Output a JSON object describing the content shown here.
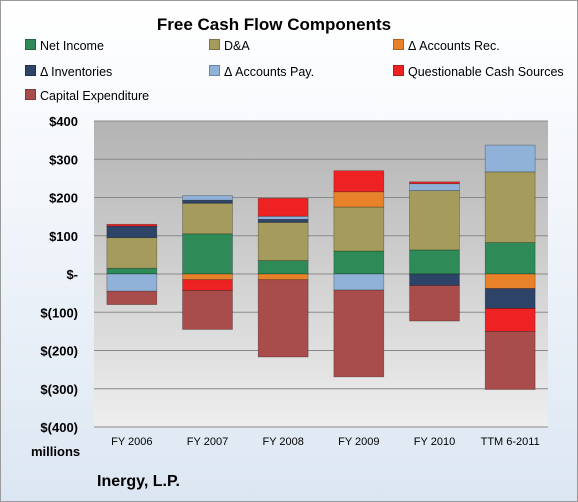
{
  "chart_data": {
    "type": "bar",
    "stacked": true,
    "title": "Free Cash Flow Components",
    "units": "millions",
    "company": "Inergy, L.P.",
    "categories": [
      "FY 2006",
      "FY 2007",
      "FY 2008",
      "FY 2009",
      "FY 2010",
      "TTM 6-2011"
    ],
    "ylim": [
      -400,
      400
    ],
    "yticks": [
      -400,
      -300,
      -200,
      -100,
      0,
      100,
      200,
      300,
      400
    ],
    "ytick_labels": [
      "$(400)",
      "$(300)",
      "$(200)",
      "$(100)",
      "$-",
      "$100",
      "$200",
      "$300",
      "$400"
    ],
    "grid": true,
    "legend_position": "top",
    "series": [
      {
        "name": "Net Income",
        "color": "#2e8b57",
        "values": [
          15,
          105,
          35,
          60,
          63,
          82
        ]
      },
      {
        "name": "D&A",
        "color": "#a49b5c",
        "values": [
          80,
          80,
          100,
          115,
          155,
          185
        ]
      },
      {
        "name": "Δ Accounts Rec.",
        "color": "#e8822a",
        "values": [
          0,
          -15,
          -15,
          40,
          0,
          -38
        ]
      },
      {
        "name": "Δ Inventories",
        "color": "#2e4368",
        "values": [
          30,
          8,
          8,
          0,
          -30,
          -52
        ]
      },
      {
        "name": "Δ Accounts Pay.",
        "color": "#90b2d8",
        "values": [
          -45,
          12,
          8,
          -42,
          18,
          70
        ]
      },
      {
        "name": "Questionable Cash Sources",
        "color": "#ee2222",
        "values": [
          5,
          -28,
          47,
          55,
          5,
          -60
        ]
      },
      {
        "name": "Capital Expenditure",
        "color": "#a84c4c",
        "values": [
          -35,
          -102,
          -202,
          -227,
          -93,
          -152
        ]
      }
    ]
  }
}
